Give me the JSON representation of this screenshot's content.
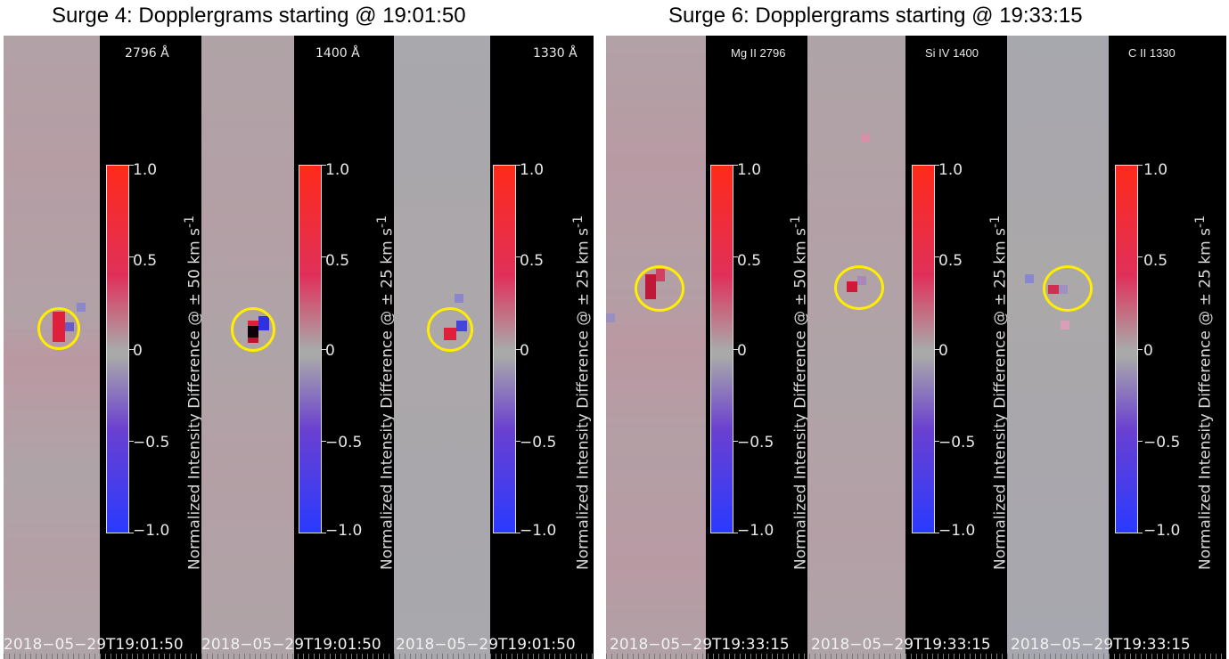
{
  "left_group": {
    "title": "Surge 4: Dopplergrams starting @ 19:01:50",
    "panels": [
      {
        "line": "2796 Å",
        "axis_label": "Normalized Intensity Difference @ ± 50 km s",
        "sup": "-1",
        "timestamp": "2018−05−29T19:01:50"
      },
      {
        "line": "1400 Å",
        "axis_label": "Normalized Intensity Difference @ ± 25 km s",
        "sup": "-1",
        "timestamp": "2018−05−29T19:01:50"
      },
      {
        "line": "1330 Å",
        "axis_label": "Normalized Intensity Difference @ ± 25 km s",
        "sup": "-1",
        "timestamp": "2018−05−29T19:01:50"
      }
    ]
  },
  "right_group": {
    "title": "Surge 6: Dopplergrams starting @ 19:33:15",
    "panels": [
      {
        "line": "Mg II 2796",
        "axis_label": "Normalized Intensity Difference @ ± 50 km s",
        "sup": "-1",
        "timestamp": "2018−05−29T19:33:15"
      },
      {
        "line": "Si IV 1400",
        "axis_label": "Normalized Intensity Difference @ ± 25 km s",
        "sup": "-1",
        "timestamp": "2018−05−29T19:33:15"
      },
      {
        "line": "C II 1330",
        "axis_label": "Normalized Intensity Difference @ ± 25 km s",
        "sup": "-1",
        "timestamp": "2018−05−29T19:33:15"
      }
    ]
  },
  "colorbar": {
    "ticks": [
      "1.0",
      "0.5",
      "0",
      "−0.5",
      "−1.0"
    ],
    "tick_values": [
      1.0,
      0.5,
      0,
      -0.5,
      -1.0
    ],
    "range": [
      -1.0,
      1.0
    ],
    "colors": {
      "positive": "#ff2a1a",
      "mid": "#a9a9a9",
      "negative": "#2a3aff"
    }
  },
  "highlight_color": "#ffee00"
}
